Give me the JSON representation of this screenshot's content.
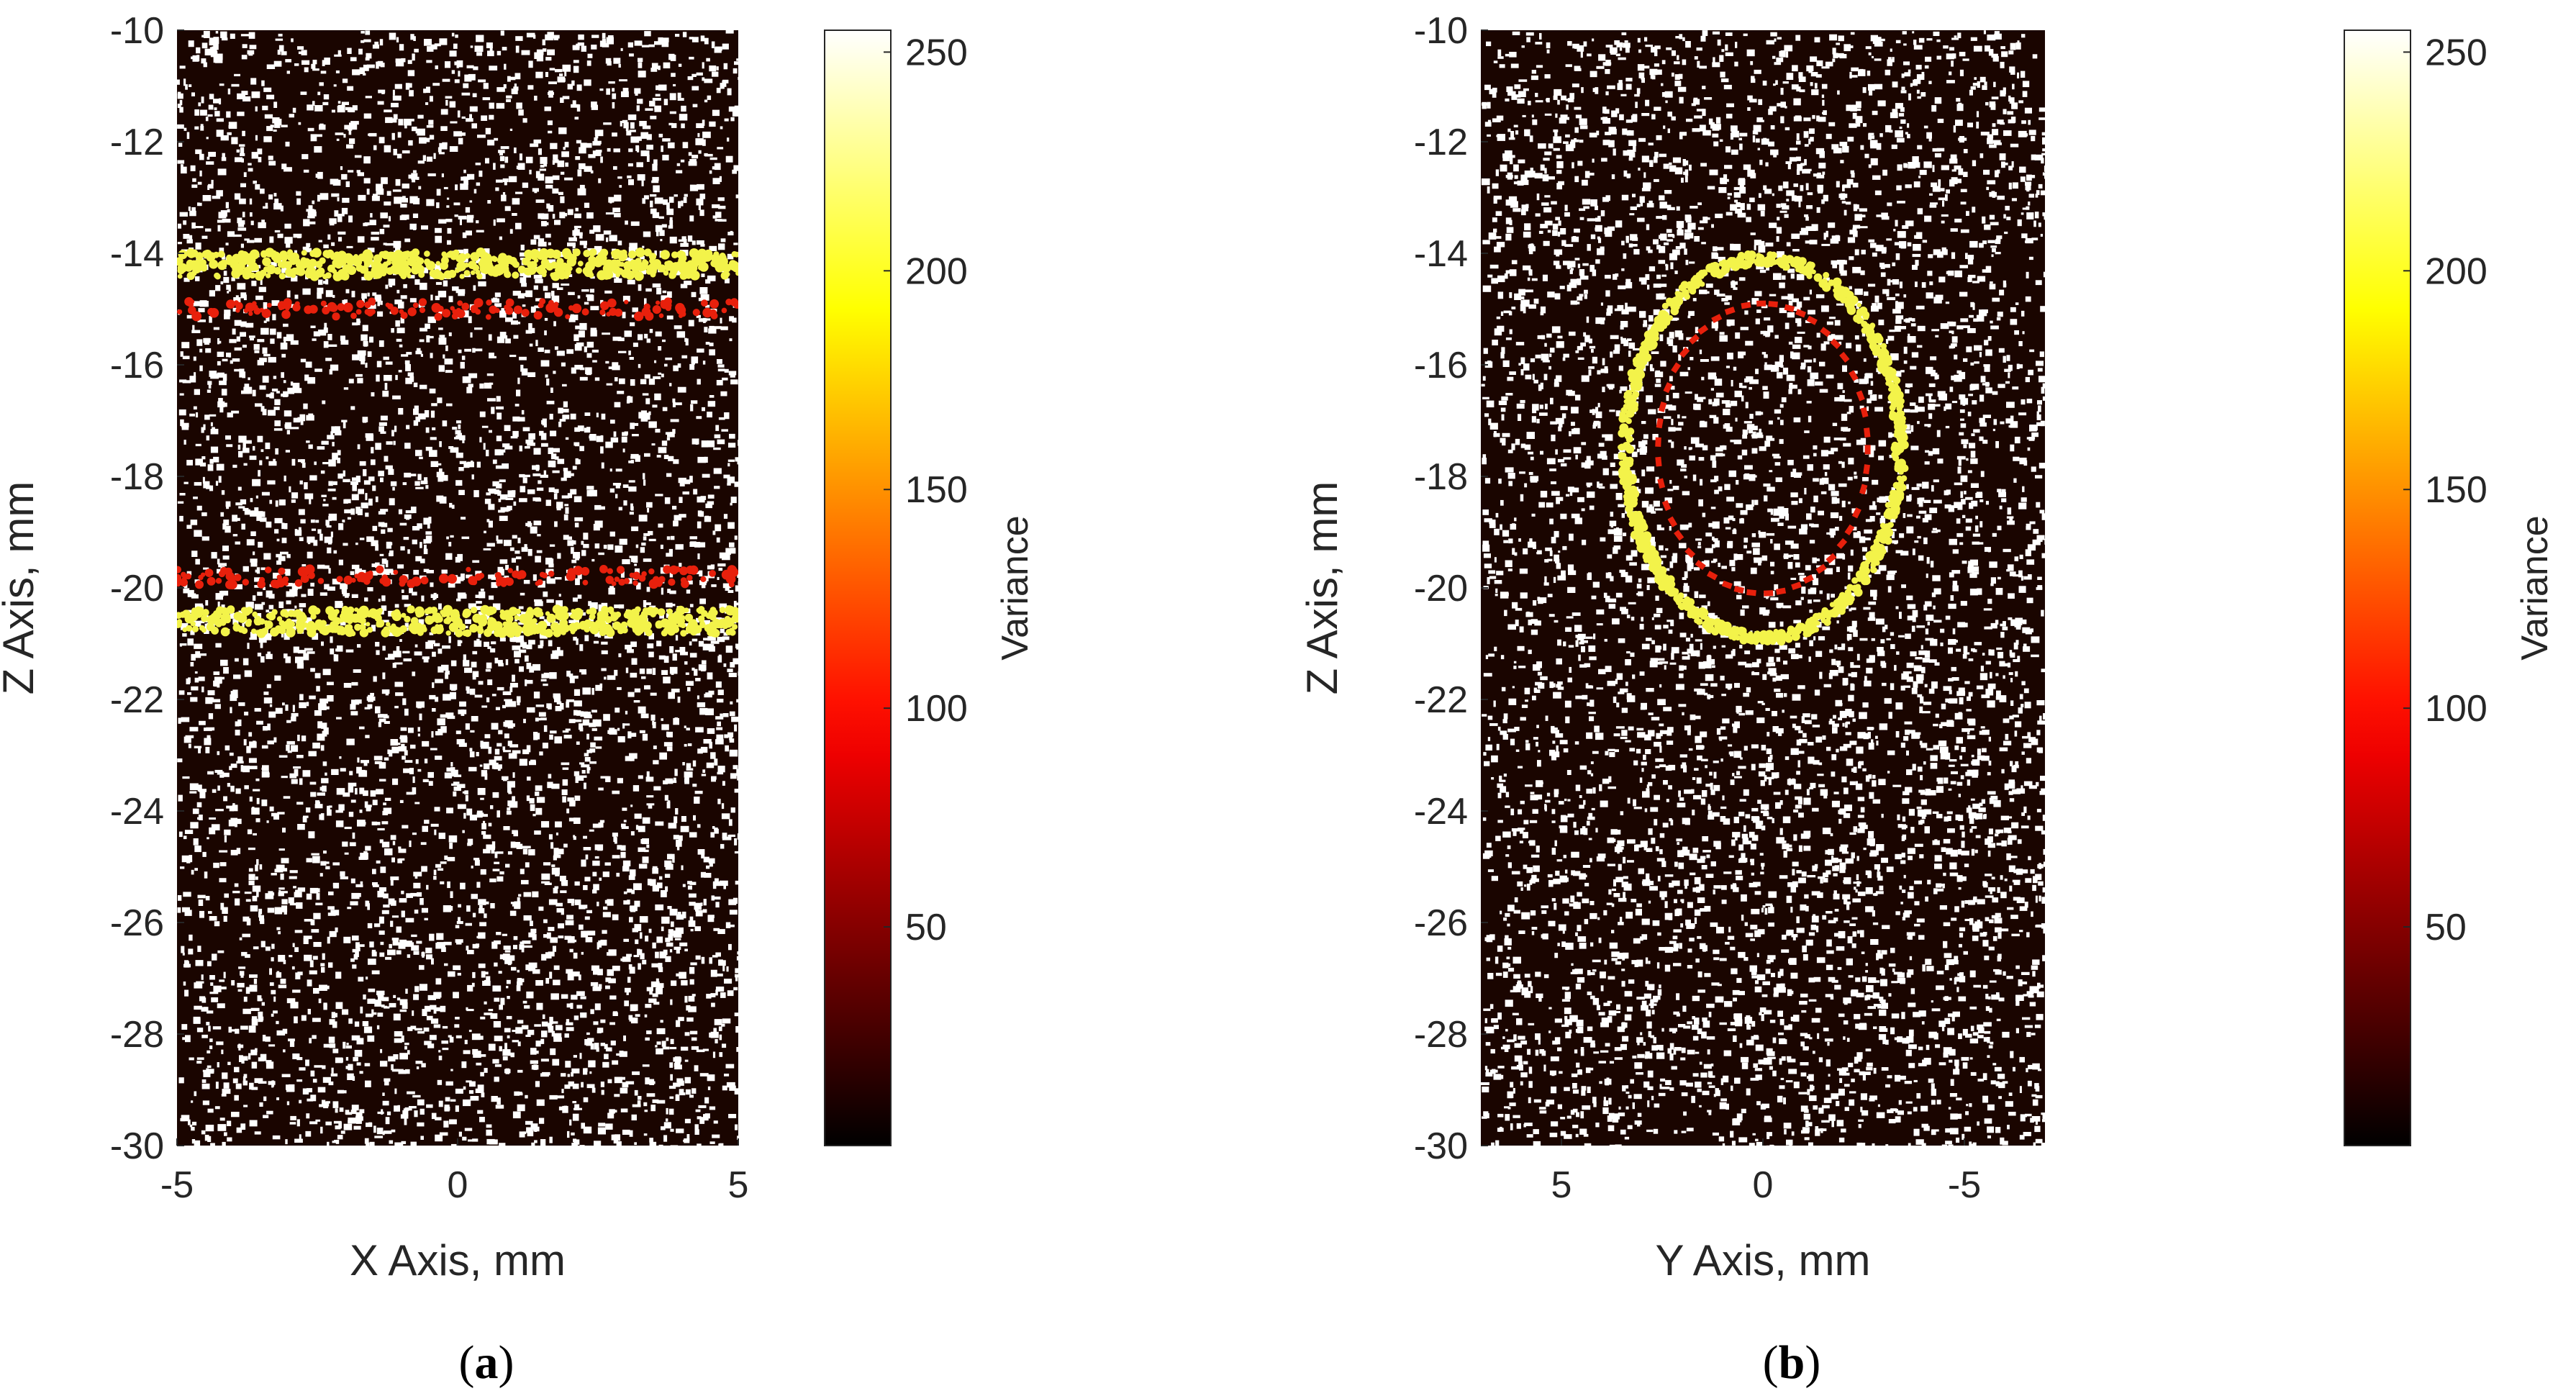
{
  "chart_data": [
    {
      "type": "scatter",
      "panel_label": "(a)",
      "panel_letter": "a",
      "xlabel": "X Axis, mm",
      "ylabel": "Z Axis, mm",
      "xlim": [
        -5,
        5
      ],
      "ylim": [
        -30,
        -10
      ],
      "x_reversed": false,
      "xticks": [
        -5,
        0,
        5
      ],
      "yticks": [
        -10,
        -12,
        -14,
        -16,
        -18,
        -20,
        -22,
        -24,
        -26,
        -28,
        -30
      ],
      "feature": {
        "shape": "horizontal-bands",
        "yellow_z": [
          -14.2,
          -20.6
        ],
        "red_z": [
          -15.0,
          -19.8
        ]
      },
      "colorbar": {
        "label": "Variance",
        "range": [
          0,
          255
        ],
        "ticks": [
          50,
          100,
          150,
          200,
          250
        ]
      },
      "colors": {
        "background": "#1a0500",
        "speckle": "#ffffff",
        "band_yellow": "#f3f34a",
        "band_red": "#e8200c"
      }
    },
    {
      "type": "scatter",
      "panel_label": "(b)",
      "panel_letter": "b",
      "xlabel": "Y Axis, mm",
      "ylabel": "Z Axis, mm",
      "xlim": [
        7,
        -7
      ],
      "ylim": [
        -30,
        -10
      ],
      "x_reversed": true,
      "xticks": [
        5,
        0,
        -5
      ],
      "yticks": [
        -10,
        -12,
        -14,
        -16,
        -18,
        -20,
        -22,
        -24,
        -26,
        -28,
        -30
      ],
      "feature": {
        "shape": "circle",
        "center": [
          0,
          -17.5
        ],
        "yellow_radius": 3.4,
        "red_radius": 2.6
      },
      "colorbar": {
        "label": "Variance",
        "range": [
          0,
          255
        ],
        "ticks": [
          50,
          100,
          150,
          200,
          250
        ]
      },
      "colors": {
        "background": "#1a0500",
        "speckle": "#ffffff",
        "band_yellow": "#f3f34a",
        "band_red": "#e8200c"
      }
    }
  ]
}
